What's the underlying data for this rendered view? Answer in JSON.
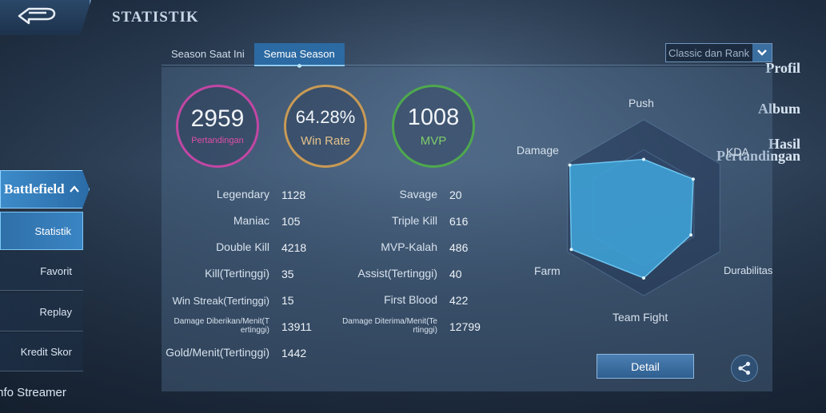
{
  "header": {
    "title": "STATISTIK"
  },
  "sidebar": {
    "items": [
      {
        "label": "Profil"
      },
      {
        "label": "Album"
      },
      {
        "label_line1": "Hasil",
        "label_line2": "Pertandingan"
      },
      {
        "label": "Battlefield"
      }
    ],
    "sub_items": [
      {
        "label": "Statistik"
      },
      {
        "label": "Favorit"
      },
      {
        "label": "Replay"
      },
      {
        "label": "Kredit Skor"
      }
    ],
    "bottom_item": "Info Streamer"
  },
  "tabs": [
    {
      "label": "Season Saat Ini"
    },
    {
      "label": "Semua Season"
    }
  ],
  "mode_select": {
    "value": "Classic dan Rank"
  },
  "summary": {
    "matches": {
      "value": "2959",
      "label": "Pertandingan"
    },
    "win_rate": {
      "value": "64.28%",
      "label": "Win Rate"
    },
    "mvp": {
      "value": "1008",
      "label": "MVP"
    }
  },
  "stats_left": [
    {
      "label": "Legendary",
      "value": "1128"
    },
    {
      "label": "Maniac",
      "value": "105"
    },
    {
      "label": "Double Kill",
      "value": "4218"
    },
    {
      "label": "Kill(Tertinggi)",
      "value": "35"
    },
    {
      "label": "Win Streak(Tertinggi)",
      "value": "15"
    },
    {
      "label_line1": "Damage Diberikan/Menit(T",
      "label_line2": "ertinggi)",
      "value": "13911"
    },
    {
      "label": "Gold/Menit(Tertinggi)",
      "value": "1442"
    }
  ],
  "stats_right": [
    {
      "label": "Savage",
      "value": "20"
    },
    {
      "label": "Triple Kill",
      "value": "616"
    },
    {
      "label": "MVP-Kalah",
      "value": "486"
    },
    {
      "label": "Assist(Tertinggi)",
      "value": "40"
    },
    {
      "label": "First Blood",
      "value": "422"
    },
    {
      "label_line1": "Damage Diterima/Menit(Te",
      "label_line2": "rtinggi)",
      "value": "12799"
    }
  ],
  "radar": {
    "axes": [
      "Push",
      "KDA",
      "Durabilitas",
      "Team Fight",
      "Farm",
      "Damage"
    ],
    "values": [
      0.55,
      0.65,
      0.62,
      0.8,
      0.95,
      0.97
    ]
  },
  "buttons": {
    "detail": "Detail"
  },
  "icons": {
    "back": "back-arrow-icon",
    "share": "share-icon",
    "dropdown": "chevron-down-icon"
  },
  "colors": {
    "matches": "#c246a4",
    "win_rate": "#c89a55",
    "mvp": "#4ea84e",
    "radar_fill": "#3fa6dc",
    "accent": "#2c6aa3"
  }
}
